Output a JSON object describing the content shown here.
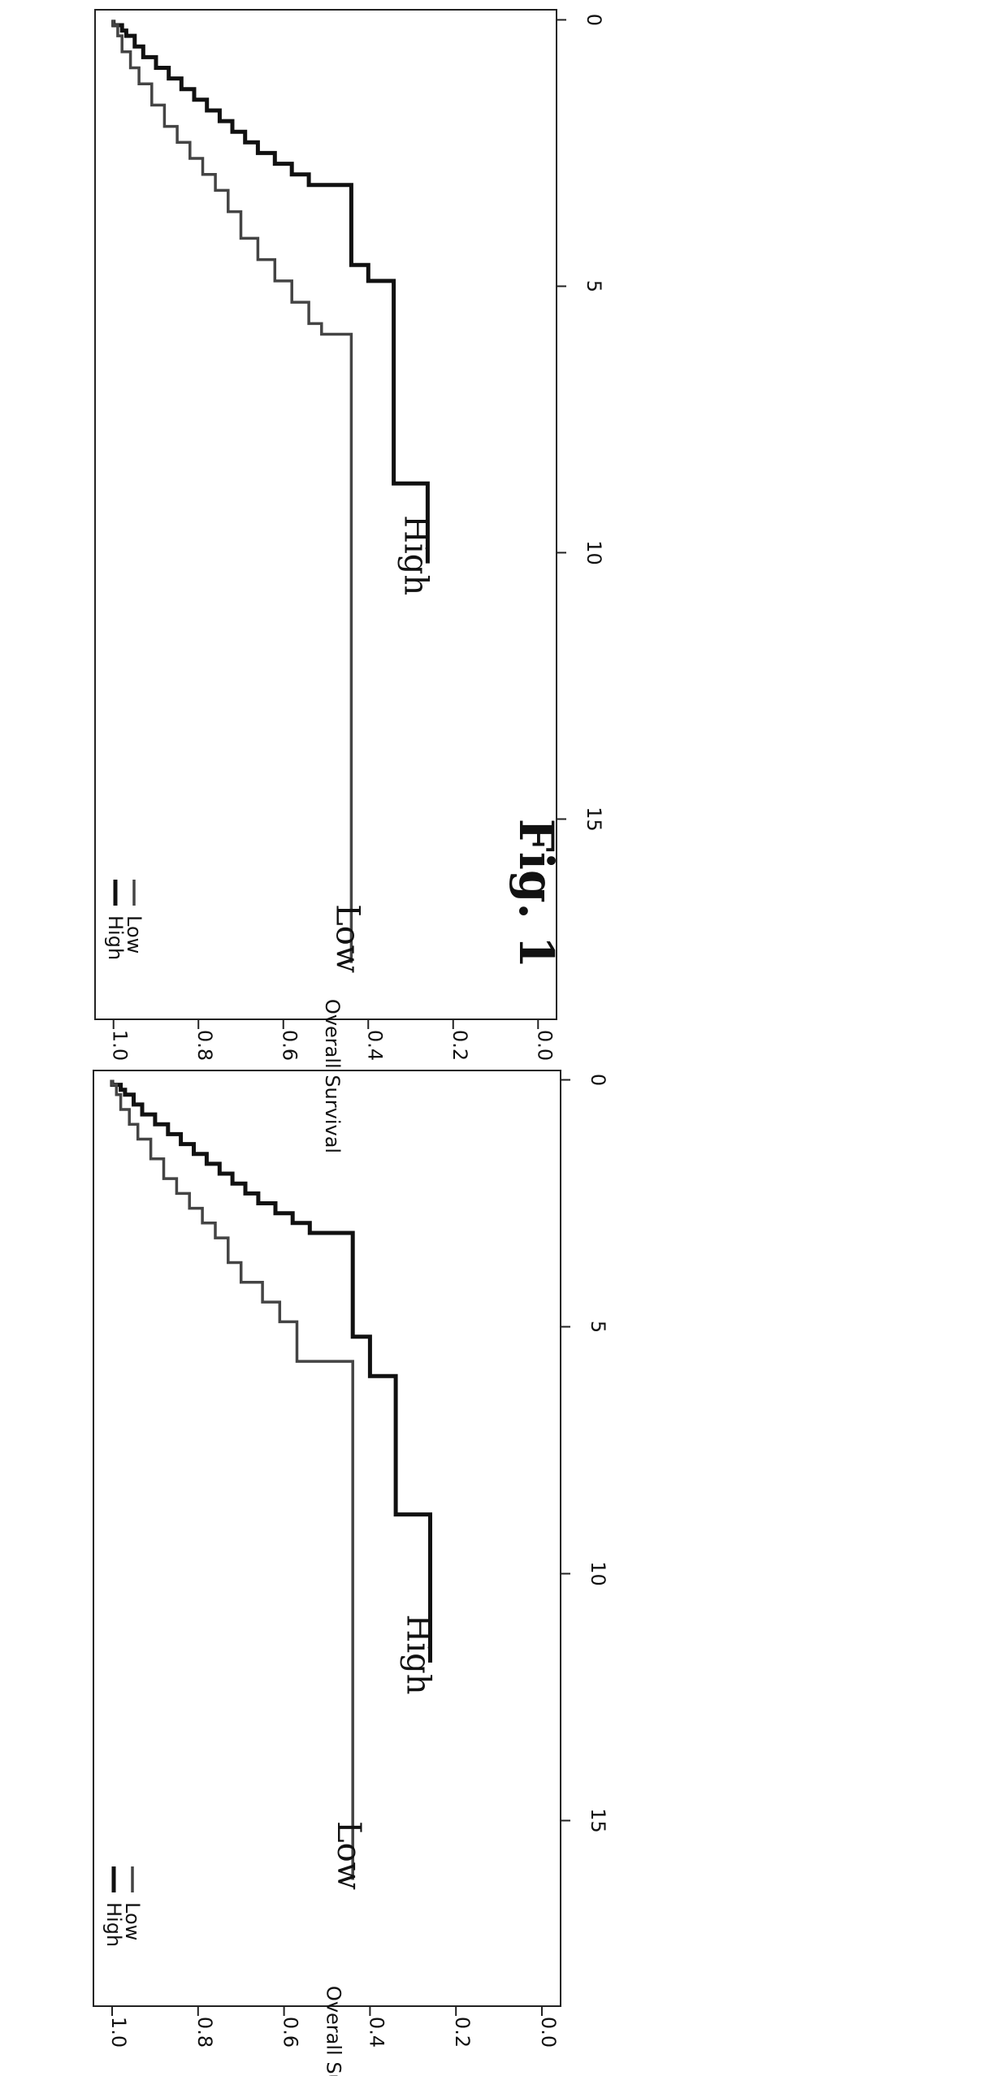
{
  "figure": {
    "title": "Fig. 1"
  },
  "chart_data": [
    {
      "type": "line",
      "step": "post",
      "xlabel": "",
      "ylabel": "Overall Survival",
      "xlim": [
        0,
        18
      ],
      "ylim": [
        0,
        1
      ],
      "x_ticks": [
        "0",
        "5",
        "10",
        "15"
      ],
      "y_ticks": [
        "0.0",
        "0.2",
        "0.4",
        "0.6",
        "0.8",
        "1.0"
      ],
      "legend": {
        "placement": "top-right",
        "entries": [
          "High",
          "Low"
        ]
      },
      "curve_labels": [
        "Low",
        "High"
      ],
      "series": [
        {
          "name": "High",
          "x": [
            0,
            0.1,
            0.2,
            0.3,
            0.5,
            0.7,
            0.9,
            1.1,
            1.3,
            1.5,
            1.7,
            1.9,
            2.1,
            2.3,
            2.5,
            2.7,
            2.9,
            3.1,
            5.2,
            6.0,
            8.8,
            11.8
          ],
          "y": [
            1.0,
            0.98,
            0.97,
            0.95,
            0.93,
            0.9,
            0.87,
            0.84,
            0.81,
            0.78,
            0.75,
            0.72,
            0.69,
            0.66,
            0.62,
            0.58,
            0.54,
            0.44,
            0.4,
            0.34,
            0.26,
            0.26
          ]
        },
        {
          "name": "Low",
          "x": [
            0,
            0.1,
            0.3,
            0.6,
            0.9,
            1.2,
            1.6,
            2.0,
            2.3,
            2.6,
            2.9,
            3.2,
            3.7,
            4.1,
            4.5,
            4.9,
            5.7,
            16.2
          ],
          "y": [
            1.0,
            0.99,
            0.98,
            0.96,
            0.94,
            0.91,
            0.88,
            0.85,
            0.82,
            0.79,
            0.76,
            0.73,
            0.7,
            0.65,
            0.61,
            0.57,
            0.44,
            0.44
          ]
        }
      ]
    },
    {
      "type": "line",
      "step": "post",
      "xlabel": "",
      "ylabel": "Overall Survival",
      "xlim": [
        0,
        18
      ],
      "ylim": [
        0,
        1
      ],
      "x_ticks": [
        "0",
        "5",
        "10",
        "15"
      ],
      "y_ticks": [
        "0.0",
        "0.2",
        "0.4",
        "0.6",
        "0.8",
        "1.0"
      ],
      "legend": {
        "placement": "top-right",
        "entries": [
          "High",
          "Low"
        ]
      },
      "curve_labels": [
        "Low",
        "High"
      ],
      "series": [
        {
          "name": "High",
          "x": [
            0,
            0.1,
            0.2,
            0.3,
            0.5,
            0.7,
            0.9,
            1.1,
            1.3,
            1.5,
            1.7,
            1.9,
            2.1,
            2.3,
            2.5,
            2.7,
            2.9,
            3.1,
            4.6,
            4.9,
            8.7,
            10.2
          ],
          "y": [
            1.0,
            0.98,
            0.97,
            0.95,
            0.93,
            0.9,
            0.87,
            0.84,
            0.81,
            0.78,
            0.75,
            0.72,
            0.69,
            0.66,
            0.62,
            0.58,
            0.54,
            0.44,
            0.4,
            0.34,
            0.26,
            0.26
          ]
        },
        {
          "name": "Low",
          "x": [
            0,
            0.1,
            0.3,
            0.6,
            0.9,
            1.2,
            1.6,
            2.0,
            2.3,
            2.6,
            2.9,
            3.2,
            3.6,
            4.1,
            4.5,
            4.9,
            5.3,
            5.7,
            5.9,
            17.7
          ],
          "y": [
            1.0,
            0.99,
            0.98,
            0.96,
            0.94,
            0.91,
            0.88,
            0.85,
            0.82,
            0.79,
            0.76,
            0.73,
            0.7,
            0.66,
            0.62,
            0.58,
            0.54,
            0.51,
            0.44,
            0.44
          ]
        }
      ]
    }
  ]
}
